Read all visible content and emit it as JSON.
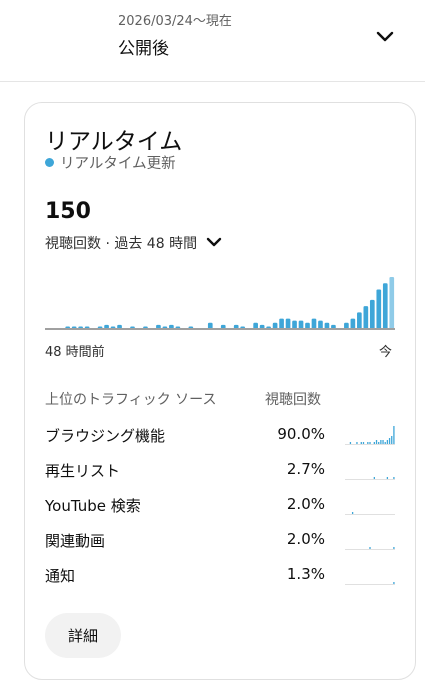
{
  "period": {
    "date_range": "2026/03/24～現在",
    "label": "公開後"
  },
  "realtime": {
    "title": "リアルタイム",
    "update_label": "リアルタイム更新",
    "count": "150",
    "metric_label": "視聴回数 · 過去 48 時間",
    "axis_start": "48 時間前",
    "axis_end": "今",
    "accent_color": "#3ea6d8",
    "chart_data": {
      "type": "bar",
      "series": [
        {
          "values": [
            0,
            0,
            0,
            1,
            1,
            1,
            1,
            0,
            1,
            2,
            1,
            2,
            0,
            1,
            0,
            1,
            0,
            2,
            1,
            2,
            1,
            0,
            1,
            0,
            0,
            3,
            0,
            2,
            0,
            2,
            1,
            0,
            3,
            2,
            1,
            3,
            5,
            5,
            4,
            4,
            3,
            5,
            4,
            3,
            2,
            0,
            3,
            5,
            8,
            11,
            14,
            19,
            22,
            25
          ]
        }
      ],
      "highlight_last": true
    }
  },
  "traffic": {
    "header_source": "上位のトラフィック ソース",
    "header_views": "視聴回数",
    "rows": [
      {
        "name": "ブラウジング機能",
        "pct": "90.0%",
        "spark": [
          0,
          0,
          1,
          0,
          0,
          1,
          0,
          1,
          1,
          0,
          1,
          1,
          0,
          1,
          2,
          1,
          2,
          2,
          1,
          2,
          3,
          4,
          9
        ]
      },
      {
        "name": "再生リスト",
        "pct": "2.7%",
        "spark": [
          0,
          0,
          0,
          0,
          0,
          0,
          0,
          0,
          0,
          0,
          0,
          0,
          0,
          1,
          0,
          0,
          0,
          0,
          0,
          1,
          0,
          0,
          1
        ]
      },
      {
        "name": "YouTube 検索",
        "pct": "2.0%",
        "spark": [
          0,
          0,
          0,
          1,
          0,
          0,
          0,
          0,
          0,
          0,
          0,
          0,
          0,
          0,
          0,
          0,
          0,
          0,
          0,
          0,
          0,
          0,
          0
        ]
      },
      {
        "name": "関連動画",
        "pct": "2.0%",
        "spark": [
          0,
          0,
          0,
          0,
          0,
          0,
          0,
          0,
          0,
          0,
          0,
          1,
          0,
          0,
          0,
          0,
          0,
          0,
          0,
          0,
          0,
          0,
          1
        ]
      },
      {
        "name": "通知",
        "pct": "1.3%",
        "spark": [
          0,
          0,
          0,
          0,
          0,
          0,
          0,
          0,
          0,
          0,
          0,
          0,
          0,
          0,
          0,
          0,
          0,
          0,
          0,
          0,
          0,
          0,
          1
        ]
      }
    ]
  },
  "details_button": "詳細"
}
